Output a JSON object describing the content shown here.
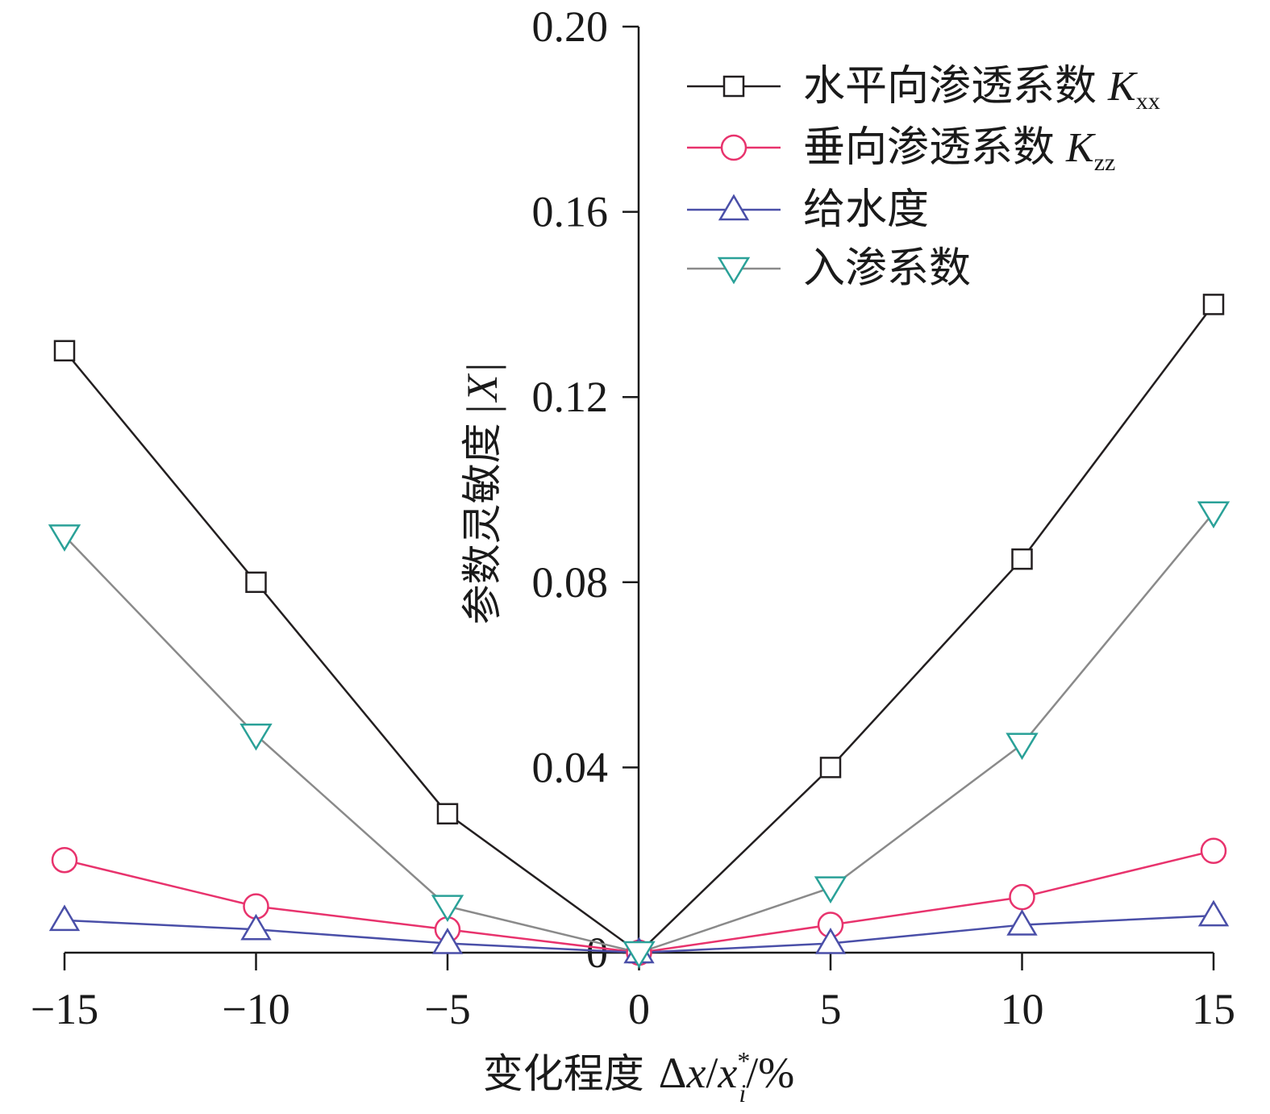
{
  "chart_data": {
    "type": "line",
    "xlabel": {
      "text": "变化程度",
      "math": "Δx/x",
      "math_delta": "Δ",
      "math_x": "x",
      "math_slash": "/",
      "math_x2": "x",
      "sub": "i",
      "sup": "*",
      "unit": "/%"
    },
    "ylabel": {
      "text": "参数灵敏度",
      "math": "|X|",
      "bar": "|",
      "var": "X"
    },
    "xlim": [
      -15,
      15
    ],
    "ylim": [
      0,
      0.2
    ],
    "x_ticks": [
      -15,
      -10,
      -5,
      0,
      5,
      10,
      15
    ],
    "x_tick_labels": [
      "−15",
      "−10",
      "−5",
      "0",
      "5",
      "10",
      "15"
    ],
    "y_ticks": [
      0,
      0.04,
      0.08,
      0.12,
      0.16,
      0.2
    ],
    "y_tick_labels": [
      "0",
      "0.04",
      "0.08",
      "0.12",
      "0.16",
      "0.20"
    ],
    "grid": false,
    "legend_position": "top-right",
    "x": [
      -15,
      -10,
      -5,
      0,
      5,
      10,
      15
    ],
    "series": [
      {
        "name": "水平向渗透系数",
        "symbol": "K",
        "subscript": "xx",
        "marker": "square",
        "color": "#231f20",
        "values": [
          0.13,
          0.08,
          0.03,
          0.0,
          0.04,
          0.085,
          0.14
        ]
      },
      {
        "name": "垂向渗透系数",
        "symbol": "K",
        "subscript": "zz",
        "marker": "circle",
        "color": "#e8336d",
        "values": [
          0.02,
          0.01,
          0.005,
          0.0,
          0.006,
          0.012,
          0.022
        ]
      },
      {
        "name": "给水度",
        "symbol": "",
        "subscript": "",
        "marker": "triangle-up",
        "color": "#4a4fa8",
        "values": [
          0.007,
          0.005,
          0.002,
          0.0,
          0.002,
          0.006,
          0.008
        ]
      },
      {
        "name": "入渗系数",
        "symbol": "",
        "subscript": "",
        "marker": "triangle-down",
        "color": "#2aa198",
        "line_color": "#8a8a8a",
        "values": [
          0.09,
          0.047,
          0.01,
          0.0,
          0.014,
          0.045,
          0.095
        ]
      }
    ]
  }
}
